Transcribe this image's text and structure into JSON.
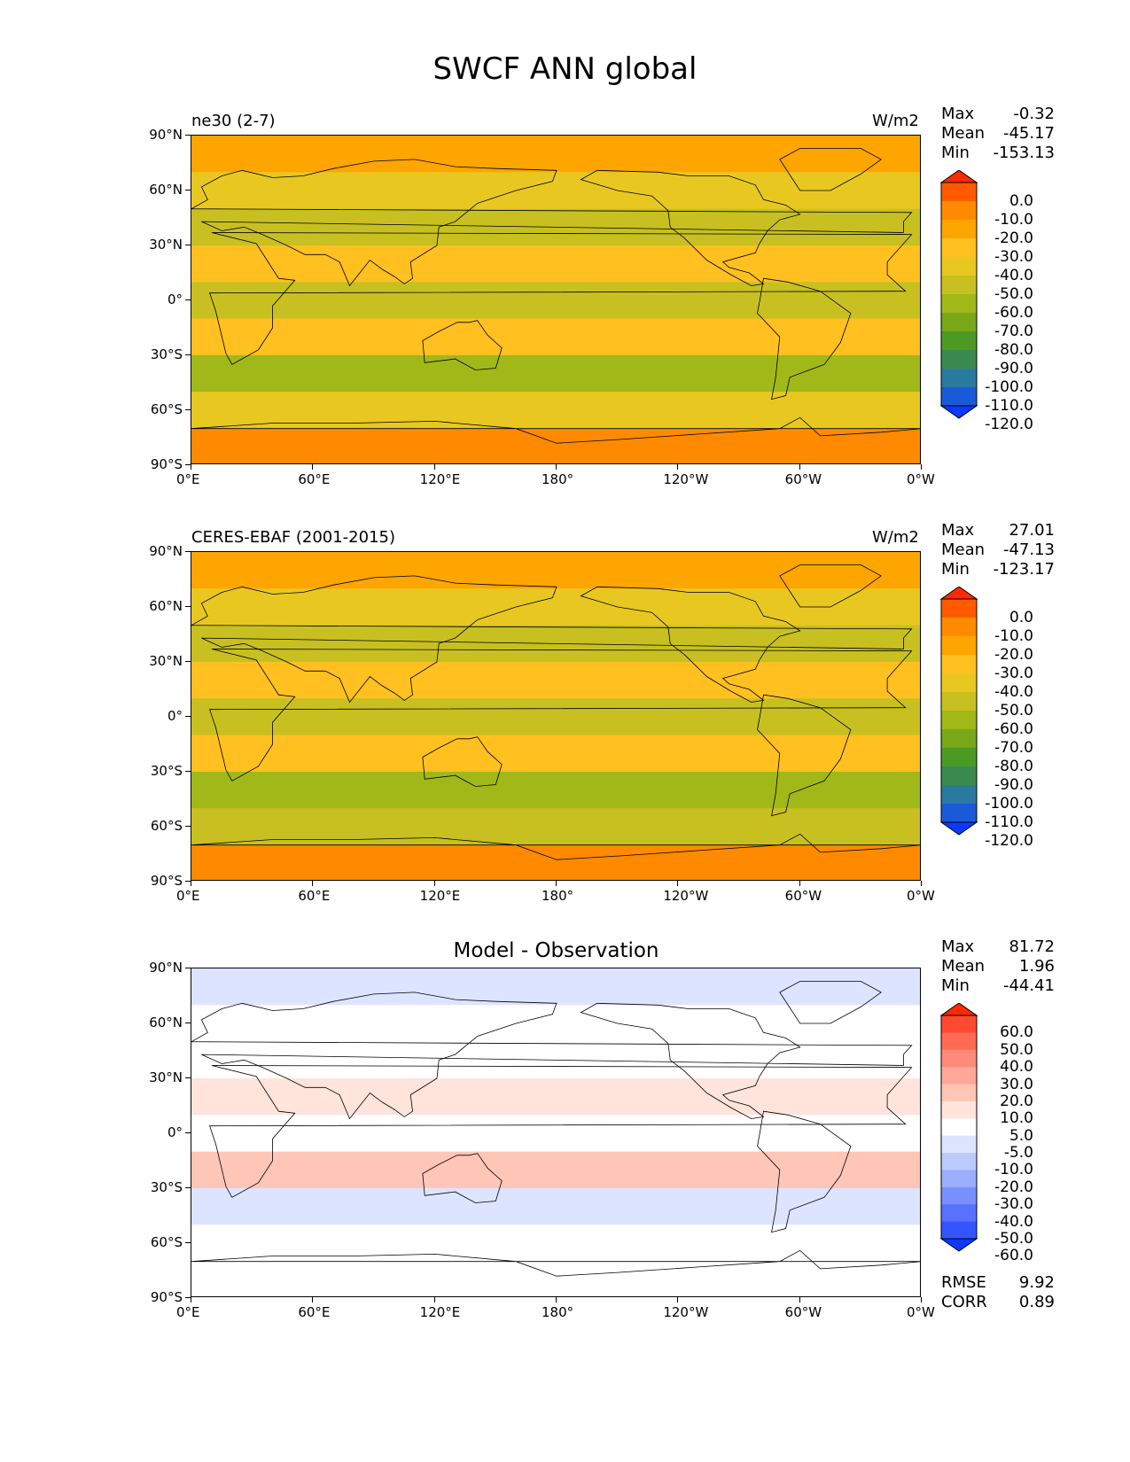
{
  "figure": {
    "title": "SWCF ANN global"
  },
  "axes": {
    "lat_labels": [
      "90°N",
      "60°N",
      "30°N",
      "0°",
      "30°S",
      "60°S",
      "90°S"
    ],
    "lon_labels": [
      "0°E",
      "60°E",
      "120°E",
      "180°",
      "120°W",
      "60°W",
      "0°W"
    ]
  },
  "panels": [
    {
      "id": "model",
      "left_title": "ne30 (2-7)",
      "right_title": "W/m2",
      "center_title": "",
      "stats": {
        "max_label": "Max",
        "max": "-0.32",
        "mean_label": "Mean",
        "mean": "-45.17",
        "min_label": "Min",
        "min": "-153.13"
      },
      "colorbar": {
        "levels": [
          "0.0",
          "-10.0",
          "-20.0",
          "-30.0",
          "-40.0",
          "-50.0",
          "-60.0",
          "-70.0",
          "-80.0",
          "-90.0",
          "-100.0",
          "-110.0",
          "-120.0"
        ],
        "colors": [
          "#ff2a00",
          "#ff5a00",
          "#ff8a00",
          "#ffa500",
          "#ffc020",
          "#e8c820",
          "#c8c020",
          "#a0b818",
          "#78a818",
          "#4c9a24",
          "#3a8a50",
          "#2a7aa0",
          "#1a5ad8",
          "#0a3aff"
        ]
      }
    },
    {
      "id": "obs",
      "left_title": "CERES-EBAF (2001-2015)",
      "right_title": "W/m2",
      "center_title": "",
      "stats": {
        "max_label": "Max",
        "max": "27.01",
        "mean_label": "Mean",
        "mean": "-47.13",
        "min_label": "Min",
        "min": "-123.17"
      },
      "colorbar": {
        "levels": [
          "0.0",
          "-10.0",
          "-20.0",
          "-30.0",
          "-40.0",
          "-50.0",
          "-60.0",
          "-70.0",
          "-80.0",
          "-90.0",
          "-100.0",
          "-110.0",
          "-120.0"
        ],
        "colors": [
          "#ff2a00",
          "#ff5a00",
          "#ff8a00",
          "#ffa500",
          "#ffc020",
          "#e8c820",
          "#c8c020",
          "#a0b818",
          "#78a818",
          "#4c9a24",
          "#3a8a50",
          "#2a7aa0",
          "#1a5ad8",
          "#0a3aff"
        ]
      }
    },
    {
      "id": "diff",
      "left_title": "",
      "right_title": "",
      "center_title": "Model - Observation",
      "stats": {
        "max_label": "Max",
        "max": "81.72",
        "mean_label": "Mean",
        "mean": "1.96",
        "min_label": "Min",
        "min": "-44.41"
      },
      "extra": {
        "rmse_label": "RMSE",
        "rmse": "9.92",
        "corr_label": "CORR",
        "corr": "0.89"
      },
      "colorbar": {
        "levels": [
          "60.0",
          "50.0",
          "40.0",
          "30.0",
          "20.0",
          "10.0",
          "5.0",
          "-5.0",
          "-10.0",
          "-20.0",
          "-30.0",
          "-40.0",
          "-50.0",
          "-60.0"
        ],
        "colors": [
          "#ff2a00",
          "#ff4a30",
          "#ff6a55",
          "#ff8a7a",
          "#ffa898",
          "#ffc6b8",
          "#ffe4dc",
          "#ffffff",
          "#dde4ff",
          "#bcc9ff",
          "#9aadff",
          "#7890ff",
          "#5672ff",
          "#3454ff",
          "#0a3aff"
        ]
      }
    }
  ],
  "chart_data": [
    {
      "type": "heatmap",
      "title": "ne30 (2-7)",
      "units": "W/m2",
      "xlim": [
        0,
        360
      ],
      "ylim": [
        -90,
        90
      ],
      "lat": [
        80,
        60,
        40,
        20,
        0,
        -20,
        -40,
        -60,
        -80
      ],
      "zonal_band_values": [
        -25,
        -45,
        -60,
        -40,
        -55,
        -40,
        -70,
        -50,
        -15
      ],
      "max": -0.32,
      "mean": -45.17,
      "min": -153.13
    },
    {
      "type": "heatmap",
      "title": "CERES-EBAF (2001-2015)",
      "units": "W/m2",
      "xlim": [
        0,
        360
      ],
      "ylim": [
        -90,
        90
      ],
      "lat": [
        80,
        60,
        40,
        20,
        0,
        -20,
        -40,
        -60,
        -80
      ],
      "zonal_band_values": [
        -22,
        -45,
        -55,
        -35,
        -60,
        -40,
        -65,
        -55,
        -12
      ],
      "max": 27.01,
      "mean": -47.13,
      "min": -123.17
    },
    {
      "type": "heatmap",
      "title": "Model - Observation",
      "units": "W/m2",
      "xlim": [
        0,
        360
      ],
      "ylim": [
        -90,
        90
      ],
      "lat": [
        80,
        60,
        40,
        20,
        0,
        -20,
        -40,
        -60,
        -80
      ],
      "zonal_band_values": [
        -8,
        -5,
        0,
        8,
        3,
        10,
        -8,
        4,
        0
      ],
      "max": 81.72,
      "mean": 1.96,
      "min": -44.41,
      "rmse": 9.92,
      "corr": 0.89
    }
  ]
}
